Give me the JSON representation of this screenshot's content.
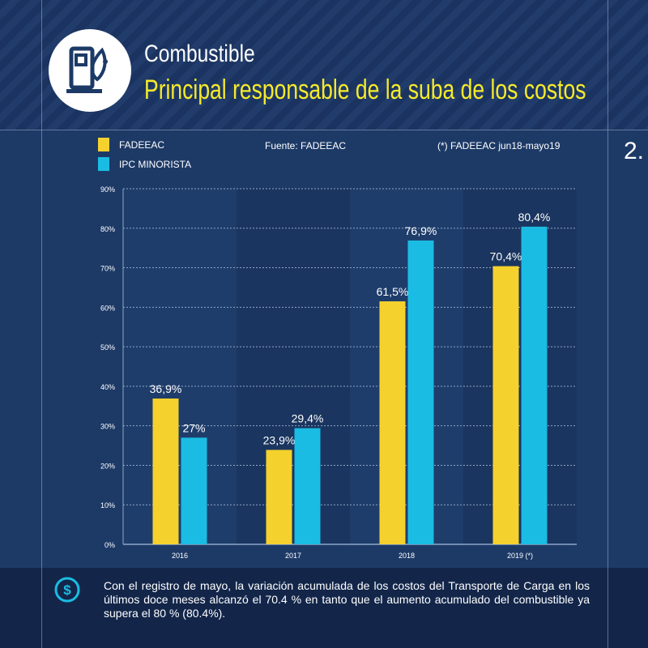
{
  "header": {
    "title": "Combustible",
    "subtitle": "Principal responsable de la suba de los costos",
    "icon": "fuel-pump-icon"
  },
  "page_number": "2.",
  "source_note": "Fuente: FADEEAC",
  "period_note": "(*) FADEEAC  jun18-mayo19",
  "footer": {
    "icon": "dollar-circle-icon",
    "text": "Con el registro de mayo, la variación acumulada de los costos del Transporte de Carga en los últimos doce meses alcanzó el 70.4 % en tanto que el aumento acumulado del combustible ya supera el 80 % (80.4%)."
  },
  "colors": {
    "fadeeac": "#f5d12e",
    "ipc": "#1bbce3",
    "accent_title": "#f6ea2a"
  },
  "chart_data": {
    "type": "bar",
    "categories": [
      "2016",
      "2017",
      "2018",
      "2019 (*)"
    ],
    "series": [
      {
        "name": "FADEEAC",
        "values": [
          36.9,
          23.9,
          61.5,
          70.4
        ],
        "labels": [
          "36,9%",
          "23,9%",
          "61,5%",
          "70,4%"
        ]
      },
      {
        "name": "IPC MINORISTA",
        "values": [
          27,
          29.4,
          76.9,
          80.4
        ],
        "labels": [
          "27%",
          "29,4%",
          "76,9%",
          "80,4%"
        ]
      }
    ],
    "yticks": [
      "0%",
      "10%",
      "20%",
      "30%",
      "40%",
      "50%",
      "60%",
      "70%",
      "80%",
      "90%"
    ],
    "ylim": [
      0,
      90
    ],
    "grid": true,
    "legend": "top-left"
  }
}
